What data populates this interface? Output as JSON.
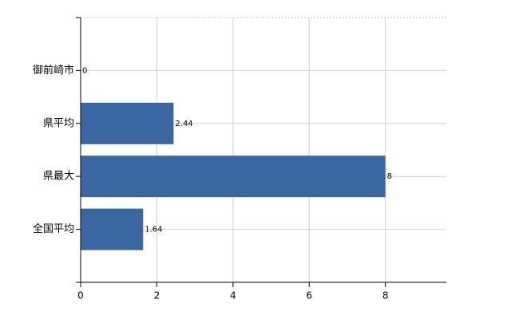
{
  "chart_data": {
    "type": "bar",
    "orientation": "horizontal",
    "categories": [
      "御前崎市",
      "県平均",
      "県最大",
      "全国平均"
    ],
    "values": [
      0,
      2.44,
      8,
      1.64
    ],
    "color": "#3a66a2",
    "xlim": [
      0,
      9.6
    ],
    "xticks": [
      0,
      2,
      4,
      6,
      8
    ],
    "grid": true
  }
}
